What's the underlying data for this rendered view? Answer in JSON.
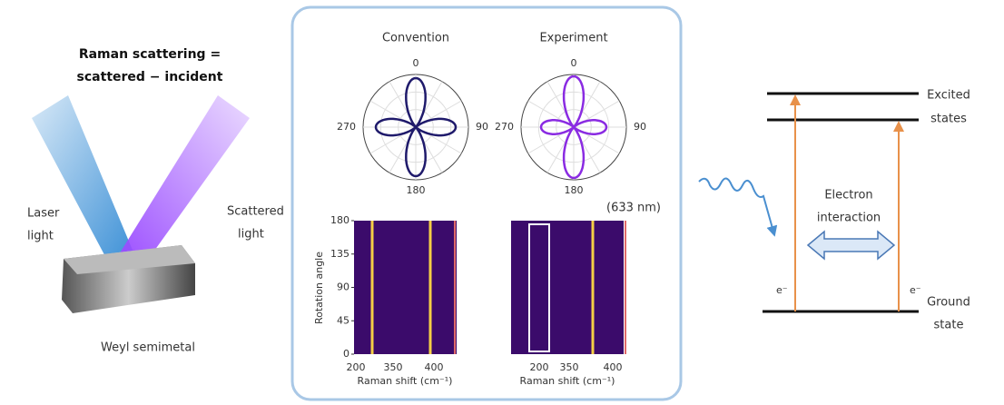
{
  "left": {
    "caption_line1": "Raman scattering =",
    "caption_line2": "scattered − incident",
    "laser_line1": "Laser",
    "laser_line2": "light",
    "scattered_line1": "Scattered",
    "scattered_line2": "light",
    "material": "Weyl semimetal"
  },
  "center": {
    "polar_titles": [
      "Convention",
      "Experiment"
    ],
    "polar_labels": [
      "0",
      "90",
      "180",
      "270"
    ],
    "wavelength": "(633 nm)",
    "y_axis_label": "Rotation angle",
    "y_ticks": [
      "0",
      "45",
      "90",
      "135",
      "180"
    ],
    "x_ticks": [
      "200",
      "350",
      "400"
    ],
    "x_axis_label": "Raman shift (cm⁻¹)"
  },
  "right": {
    "excited_line1": "Excited",
    "excited_line2": "states",
    "interaction_line1": "Electron",
    "interaction_line2": "interaction",
    "electron": "e⁻",
    "ground_line1": "Ground",
    "ground_line2": "state"
  }
}
